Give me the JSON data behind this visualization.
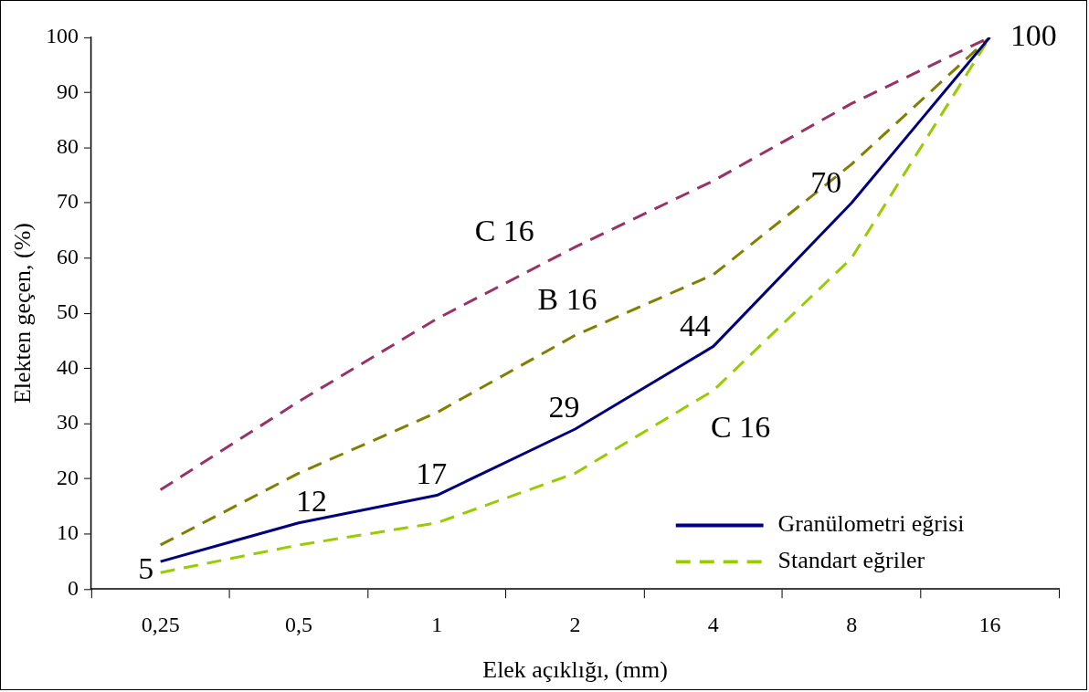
{
  "chart_data": {
    "type": "line",
    "xlabel": "Elek açıklığı, (mm)",
    "ylabel": "Elekten geçen, (%)",
    "categories": [
      "0,25",
      "0,5",
      "1",
      "2",
      "4",
      "8",
      "16"
    ],
    "ylim": [
      0,
      100
    ],
    "yticks": [
      0,
      10,
      20,
      30,
      40,
      50,
      60,
      70,
      80,
      90,
      100
    ],
    "grid": false,
    "legend": "bottom right",
    "marker": "none",
    "series": [
      {
        "name": "Granülometri eğrisi",
        "color": "#000080",
        "line_style": "solid",
        "values": [
          5,
          12,
          17,
          29,
          44,
          70,
          100
        ],
        "value_labels": [
          "5",
          "12",
          "17",
          "29",
          "44",
          "70",
          "100"
        ]
      },
      {
        "color": "#993366",
        "line_style": "dashed",
        "values": [
          18,
          34,
          49,
          62,
          74,
          88,
          100
        ]
      },
      {
        "color": "#808000",
        "line_style": "dashed",
        "values": [
          8,
          21,
          32,
          46,
          57,
          77,
          100
        ]
      },
      {
        "name": "Standart eğriler",
        "color": "#99cc00",
        "line_style": "dashed",
        "values": [
          3,
          8,
          12,
          21,
          36,
          60,
          100
        ]
      }
    ],
    "annotations": [
      "C 16",
      "B 16",
      "C 16"
    ]
  }
}
